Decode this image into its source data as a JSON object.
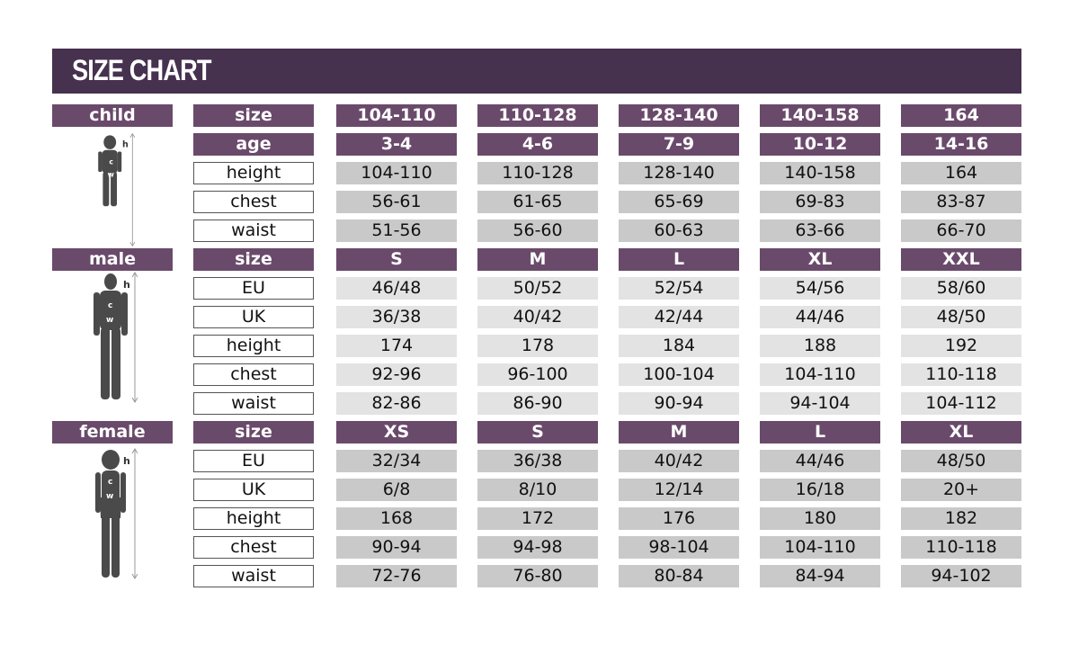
{
  "title": "SIZE CHART",
  "colors": {
    "title_bar": "#46314f",
    "header": "#6a4a6b",
    "cell_gray": "#c9c9c9",
    "cell_light": "#e3e3e3"
  },
  "sections": [
    {
      "name": "child",
      "figure": "child-silhouette-icon",
      "rows": [
        {
          "label": "size",
          "header": true,
          "values": [
            "104-110",
            "110-128",
            "128-140",
            "140-158",
            "164"
          ]
        },
        {
          "label": "age",
          "header": true,
          "values": [
            "3-4",
            "4-6",
            "7-9",
            "10-12",
            "14-16"
          ]
        },
        {
          "label": "height",
          "values": [
            "104-110",
            "110-128",
            "128-140",
            "140-158",
            "164"
          ]
        },
        {
          "label": "chest",
          "values": [
            "56-61",
            "61-65",
            "65-69",
            "69-83",
            "83-87"
          ]
        },
        {
          "label": "waist",
          "values": [
            "51-56",
            "56-60",
            "60-63",
            "63-66",
            "66-70"
          ]
        }
      ]
    },
    {
      "name": "male",
      "figure": "male-silhouette-icon",
      "rows": [
        {
          "label": "size",
          "header": true,
          "values": [
            "S",
            "M",
            "L",
            "XL",
            "XXL"
          ]
        },
        {
          "label": "EU",
          "values": [
            "46/48",
            "50/52",
            "52/54",
            "54/56",
            "58/60"
          ]
        },
        {
          "label": "UK",
          "values": [
            "36/38",
            "40/42",
            "42/44",
            "44/46",
            "48/50"
          ]
        },
        {
          "label": "height",
          "values": [
            "174",
            "178",
            "184",
            "188",
            "192"
          ]
        },
        {
          "label": "chest",
          "values": [
            "92-96",
            "96-100",
            "100-104",
            "104-110",
            "110-118"
          ]
        },
        {
          "label": "waist",
          "values": [
            "82-86",
            "86-90",
            "90-94",
            "94-104",
            "104-112"
          ]
        }
      ]
    },
    {
      "name": "female",
      "figure": "female-silhouette-icon",
      "rows": [
        {
          "label": "size",
          "header": true,
          "values": [
            "XS",
            "S",
            "M",
            "L",
            "XL"
          ]
        },
        {
          "label": "EU",
          "values": [
            "32/34",
            "36/38",
            "40/42",
            "44/46",
            "48/50"
          ]
        },
        {
          "label": "UK",
          "values": [
            "6/8",
            "8/10",
            "12/14",
            "16/18",
            "20+"
          ]
        },
        {
          "label": "height",
          "values": [
            "168",
            "172",
            "176",
            "180",
            "182"
          ]
        },
        {
          "label": "chest",
          "values": [
            "90-94",
            "94-98",
            "98-104",
            "104-110",
            "110-118"
          ]
        },
        {
          "label": "waist",
          "values": [
            "72-76",
            "76-80",
            "80-84",
            "84-94",
            "94-102"
          ]
        }
      ]
    }
  ],
  "figure_labels": {
    "h": "h",
    "c": "c",
    "w": "w"
  }
}
